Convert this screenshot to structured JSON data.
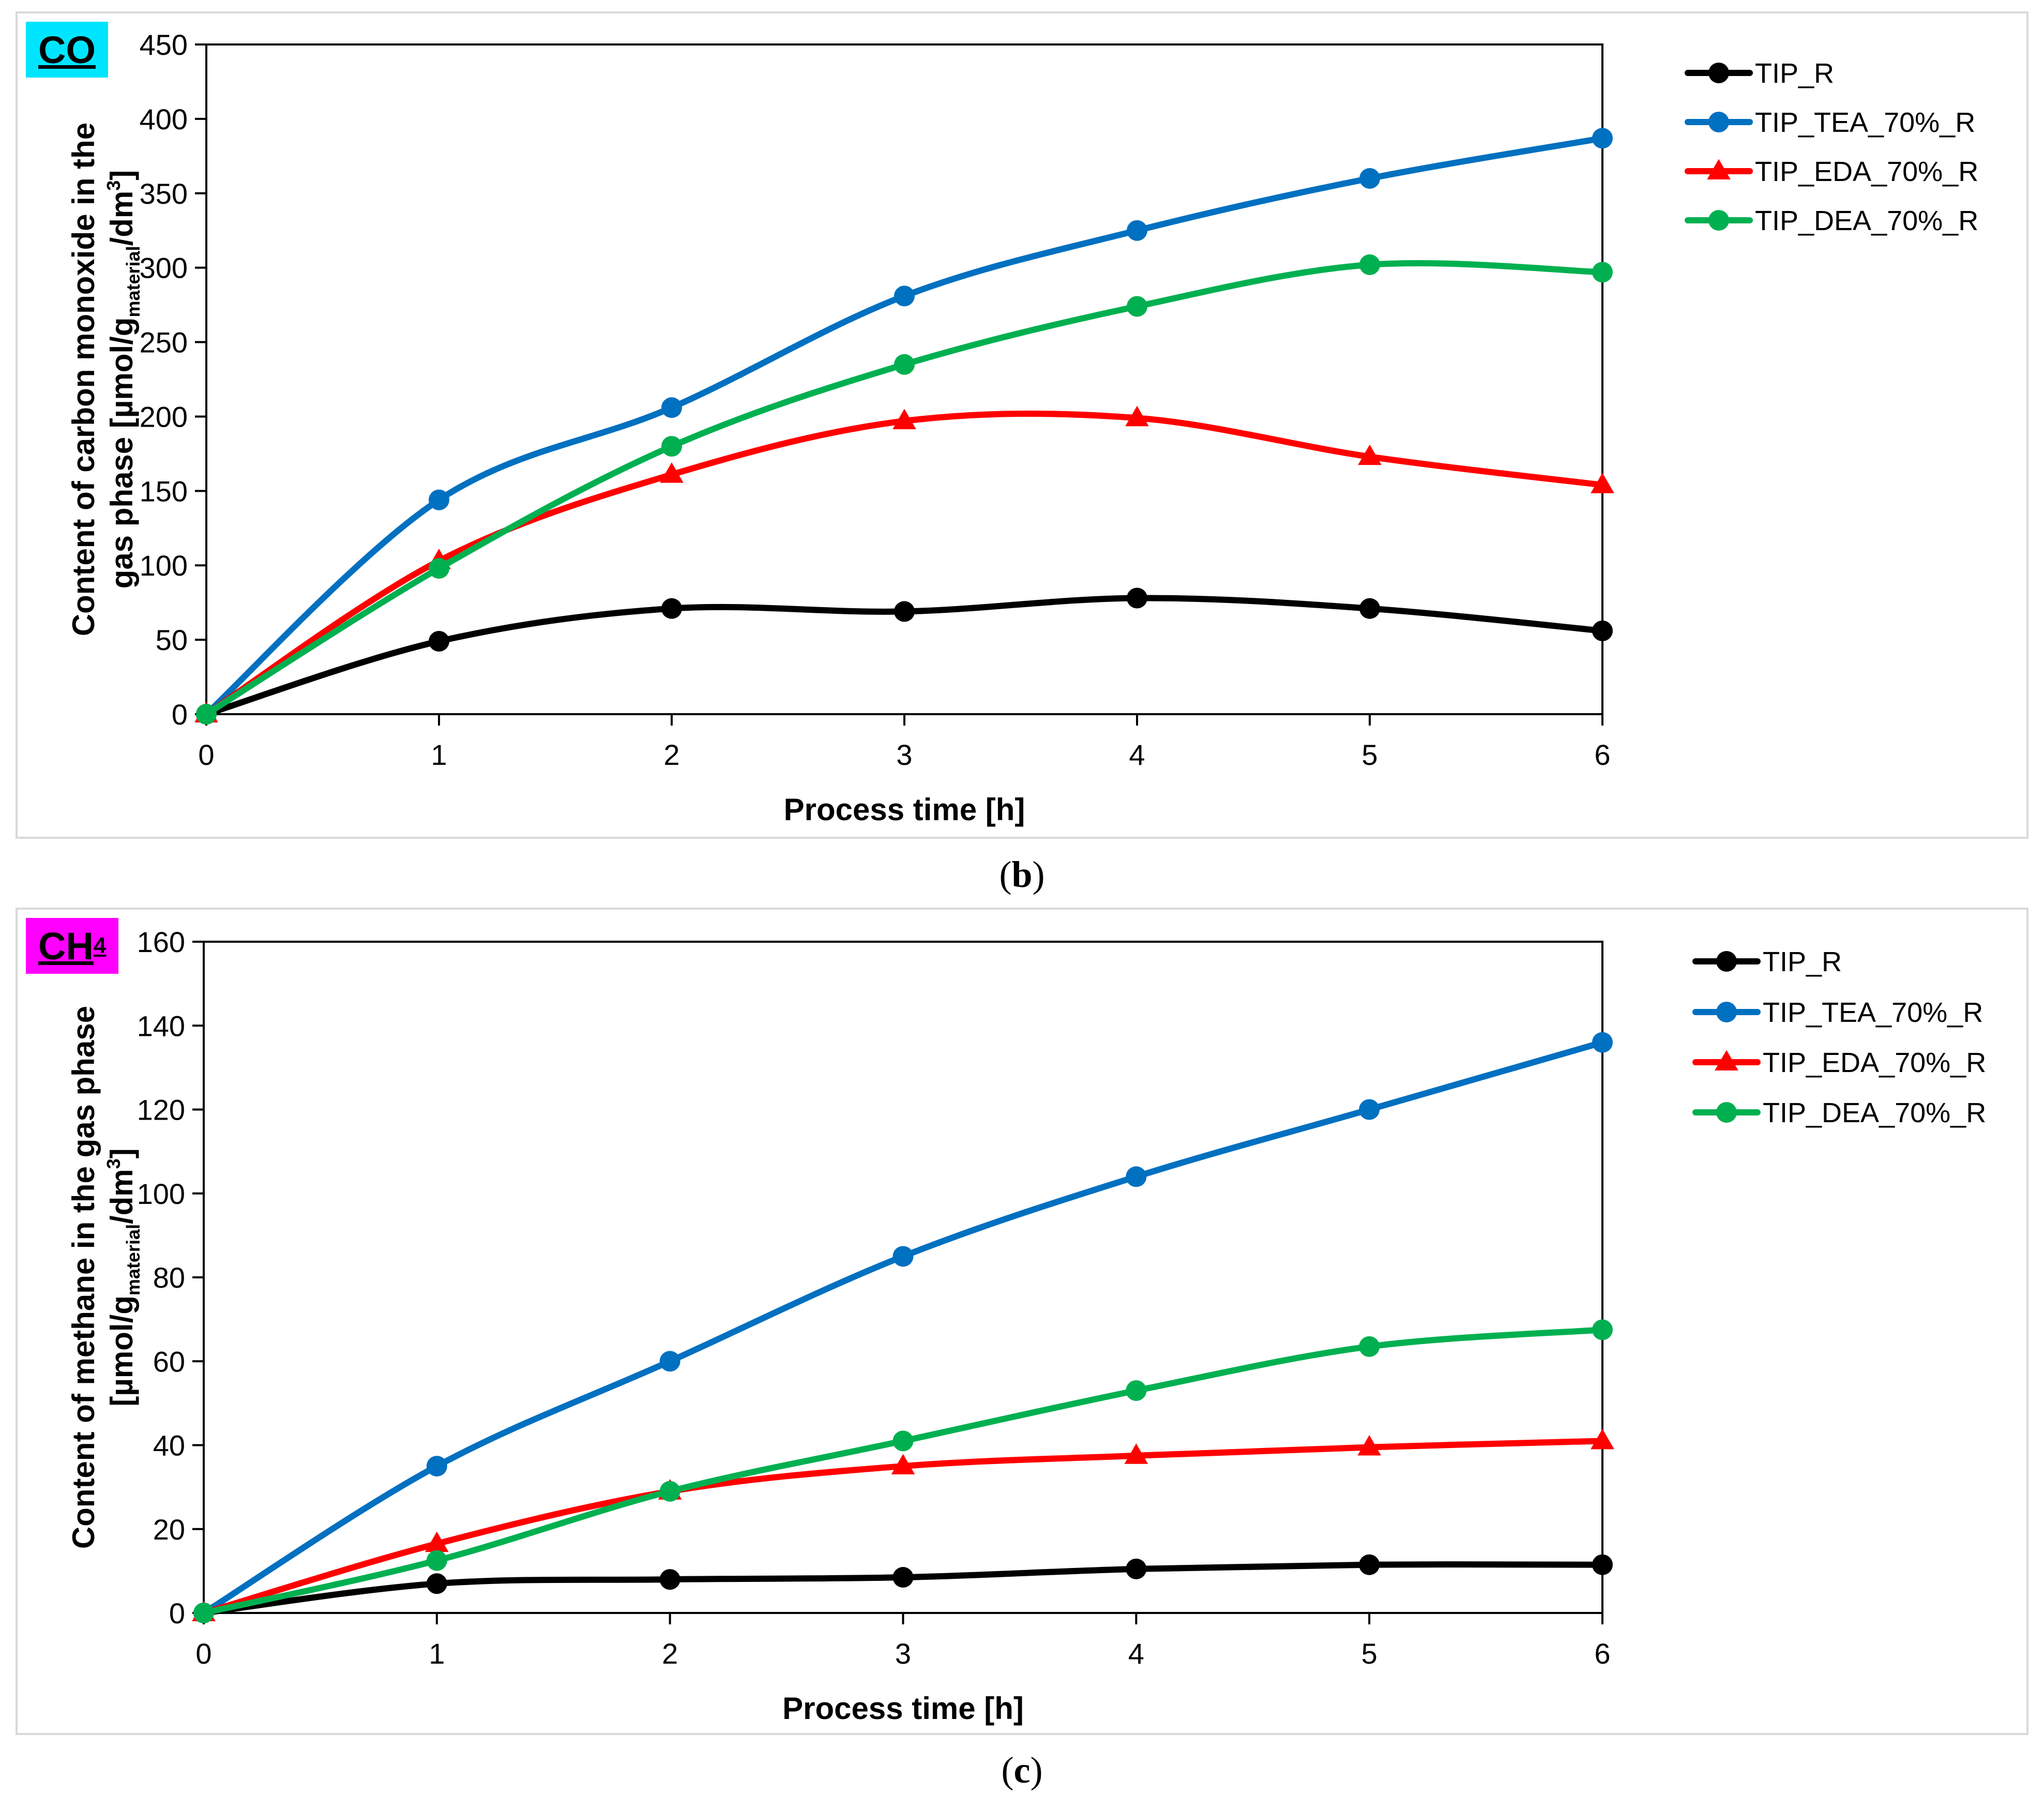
{
  "captions": {
    "b": "b",
    "c": "c"
  },
  "colors": {
    "TIP_R": "#000000",
    "TIP_TEA_70%_R": "#0070C0",
    "TIP_EDA_70%_R": "#FF0000",
    "TIP_DEA_70%_R": "#00B050",
    "co_badge": "#00E5FF",
    "ch4_badge": "#FF00FF"
  },
  "chart_data": [
    {
      "type": "line",
      "badge": {
        "text": "CO",
        "sub": ""
      },
      "xlabel": "Process time  [h]",
      "ylabel_line1": "Content of carbon monoxide in the",
      "ylabel_line2_pre": "gas phase [µmol/g",
      "ylabel_sub": "material",
      "ylabel_mid": "/dm",
      "ylabel_sup": "3",
      "ylabel_end": "]",
      "x": [
        0,
        1,
        2,
        3,
        4,
        5,
        6
      ],
      "xlim": [
        0,
        6
      ],
      "ylim": [
        0,
        450
      ],
      "yticks": [
        0,
        50,
        100,
        150,
        200,
        250,
        300,
        350,
        400,
        450
      ],
      "legend_position": "right",
      "series": [
        {
          "name": "TIP_R",
          "marker": "circle",
          "values": [
            0,
            49,
            71,
            69,
            78,
            71,
            56
          ]
        },
        {
          "name": "TIP_TEA_70%_R",
          "marker": "circle",
          "values": [
            0,
            144,
            206,
            281,
            325,
            360,
            387
          ]
        },
        {
          "name": "TIP_EDA_70%_R",
          "marker": "triangle",
          "values": [
            0,
            103,
            161,
            197,
            199,
            173,
            154
          ]
        },
        {
          "name": "TIP_DEA_70%_R",
          "marker": "circle",
          "values": [
            0,
            98,
            180,
            235,
            274,
            302,
            297
          ]
        }
      ]
    },
    {
      "type": "line",
      "badge": {
        "text": "CH",
        "sub": "4"
      },
      "xlabel": "Process time  [h]",
      "ylabel_line1": "Content of methane in the gas phase",
      "ylabel_line2_pre": "[µmol/g",
      "ylabel_sub": "material",
      "ylabel_mid": "/dm",
      "ylabel_sup": "3",
      "ylabel_end": "]",
      "x": [
        0,
        1,
        2,
        3,
        4,
        5,
        6
      ],
      "xlim": [
        0,
        6
      ],
      "ylim": [
        0,
        160
      ],
      "yticks": [
        0,
        20,
        40,
        60,
        80,
        100,
        120,
        140,
        160
      ],
      "legend_position": "right",
      "series": [
        {
          "name": "TIP_R",
          "marker": "circle",
          "values": [
            0,
            7,
            8,
            8.5,
            10.5,
            11.5,
            11.5
          ]
        },
        {
          "name": "TIP_TEA_70%_R",
          "marker": "circle",
          "values": [
            0,
            35,
            60,
            85,
            104,
            120,
            136
          ]
        },
        {
          "name": "TIP_EDA_70%_R",
          "marker": "triangle",
          "values": [
            0,
            16.5,
            29,
            35,
            37.5,
            39.5,
            41
          ]
        },
        {
          "name": "TIP_DEA_70%_R",
          "marker": "circle",
          "values": [
            0,
            12.5,
            29,
            41,
            53,
            63.5,
            67.5
          ]
        }
      ]
    }
  ]
}
